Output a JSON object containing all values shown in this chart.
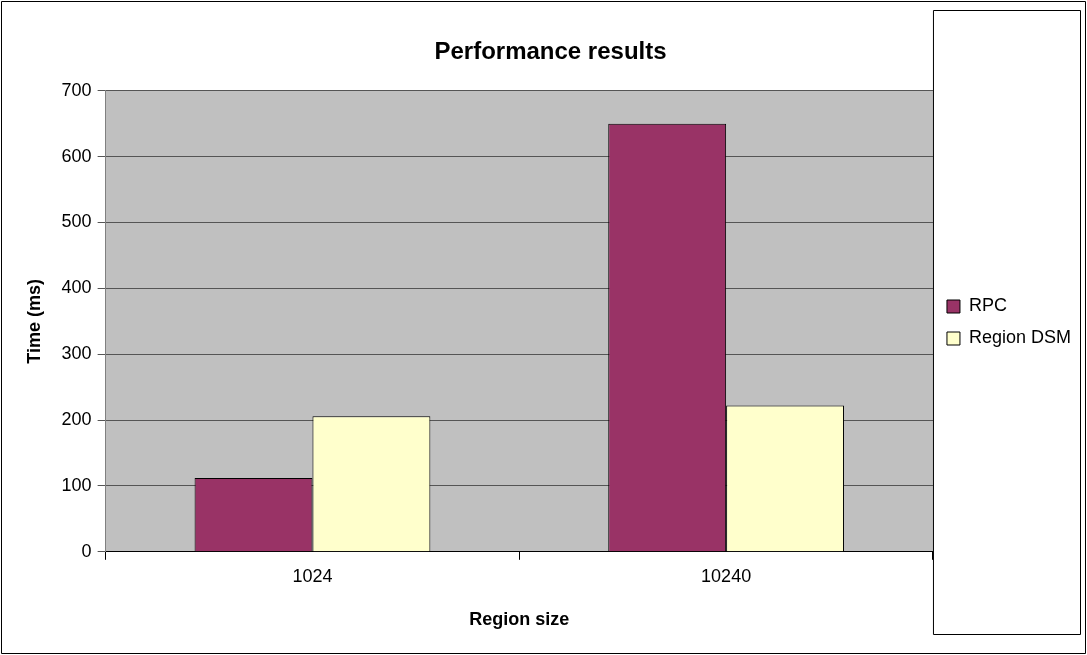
{
  "chart_data": {
    "type": "bar",
    "title": "Performance results",
    "xlabel": "Region size",
    "ylabel": "Time (ms)",
    "categories": [
      "1024",
      "10240"
    ],
    "series": [
      {
        "name": "RPC",
        "color": "#993366",
        "values": [
          112,
          650
        ]
      },
      {
        "name": "Region DSM",
        "color": "#ffffcc",
        "values": [
          206,
          222
        ]
      }
    ],
    "ylim": [
      0,
      700
    ],
    "yticks": [
      0,
      100,
      200,
      300,
      400,
      500,
      600,
      700
    ],
    "grid": "y",
    "legend": "right"
  }
}
